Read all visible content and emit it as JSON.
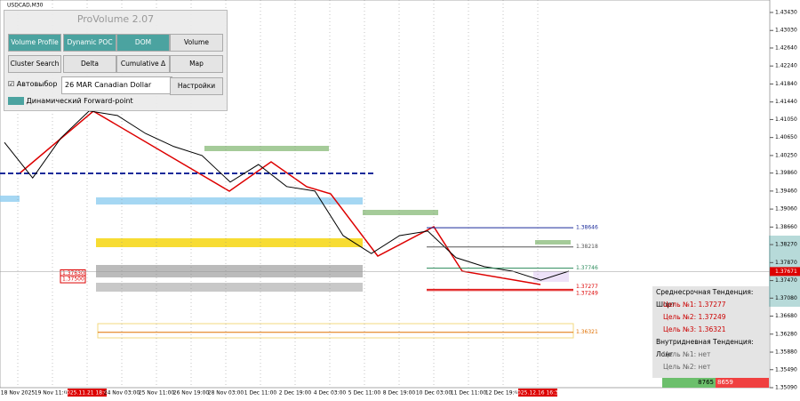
{
  "symbol": "USDCAD,M30",
  "panel": {
    "title": "ProVolume 2.07",
    "buttons": [
      "Volume Profile",
      "Dynamic POC",
      "DOM",
      "Volume",
      "Cluster Search",
      "Delta",
      "Cumulative Δ",
      "Map"
    ],
    "autoselect": "Автовыбор",
    "instrument": "26 MAR Canadian Dollar",
    "settings": "Настройки",
    "forward_point": "Динамический Forward-point"
  },
  "price_axis": {
    "ylim": [
      1.3509,
      1.4343
    ],
    "ticks": [
      {
        "value": 1.4343,
        "label": "1.43430"
      },
      {
        "value": 1.4303,
        "label": "1.43030"
      },
      {
        "value": 1.4264,
        "label": "1.42640"
      },
      {
        "value": 1.4224,
        "label": "1.42240"
      },
      {
        "value": 1.4184,
        "label": "1.41840"
      },
      {
        "value": 1.4144,
        "label": "1.41440"
      },
      {
        "value": 1.4105,
        "label": "1.41050"
      },
      {
        "value": 1.4065,
        "label": "1.40650"
      },
      {
        "value": 1.4025,
        "label": "1.40250"
      },
      {
        "value": 1.3986,
        "label": "1.39860"
      },
      {
        "value": 1.3946,
        "label": "1.39460"
      },
      {
        "value": 1.3906,
        "label": "1.39060"
      },
      {
        "value": 1.3866,
        "label": "1.38660"
      },
      {
        "value": 1.3827,
        "label": "1.38270"
      },
      {
        "value": 1.3787,
        "label": "1.37870"
      },
      {
        "value": 1.3747,
        "label": "1.37470"
      },
      {
        "value": 1.3708,
        "label": "1.37080"
      },
      {
        "value": 1.3668,
        "label": "1.36680"
      },
      {
        "value": 1.3628,
        "label": "1.36280"
      },
      {
        "value": 1.3588,
        "label": "1.35880"
      },
      {
        "value": 1.3549,
        "label": "1.35490"
      },
      {
        "value": 1.3509,
        "label": "1.35090"
      }
    ],
    "current": 1.37671
  },
  "time_axis": [
    "18 Nov 2025",
    "19 Nov 11:00",
    "2025.11.21 18:00",
    "24 Nov 03:00",
    "25 Nov 11:00",
    "26 Nov 19:00",
    "28 Nov 03:00",
    "1 Dec 11:00",
    "2 Dec 19:00",
    "4 Dec 03:00",
    "5 Dec 11:00",
    "8 Dec 19:00",
    "10 Dec 03:00",
    "11 Dec 11:00",
    "12 Dec 19:00",
    "2025.12.16 16:30"
  ],
  "closes": [
    1.4054,
    1.3975,
    1.4064,
    1.4124,
    1.4114,
    1.4074,
    1.4045,
    1.4025,
    1.3966,
    1.4005,
    1.3956,
    1.3946,
    1.3847,
    1.3807,
    1.3847,
    1.3857,
    1.3798,
    1.3778,
    1.3768,
    1.3748,
    1.3768
  ],
  "levels": [
    1.38646,
    1.38218,
    1.37746,
    1.37277,
    1.37249,
    1.36321
  ],
  "left_levels": [
    {
      "value": 1.3763,
      "label": "1.37630"
    },
    {
      "value": 1.375,
      "label": "1.37500"
    }
  ],
  "trend": {
    "mid_term": "Среднесрочная Тенденция: Шорт",
    "targets": [
      "Цель №1: 1.37277",
      "Цель №2: 1.37249",
      "Цель №3: 1.36321"
    ],
    "intraday": "Внутридневная Тенденция: Лонг",
    "intraday_targets": [
      "Цель №1: нет",
      "Цель №2: нет"
    ]
  },
  "volume_balance": [
    "8765",
    "8659"
  ]
}
